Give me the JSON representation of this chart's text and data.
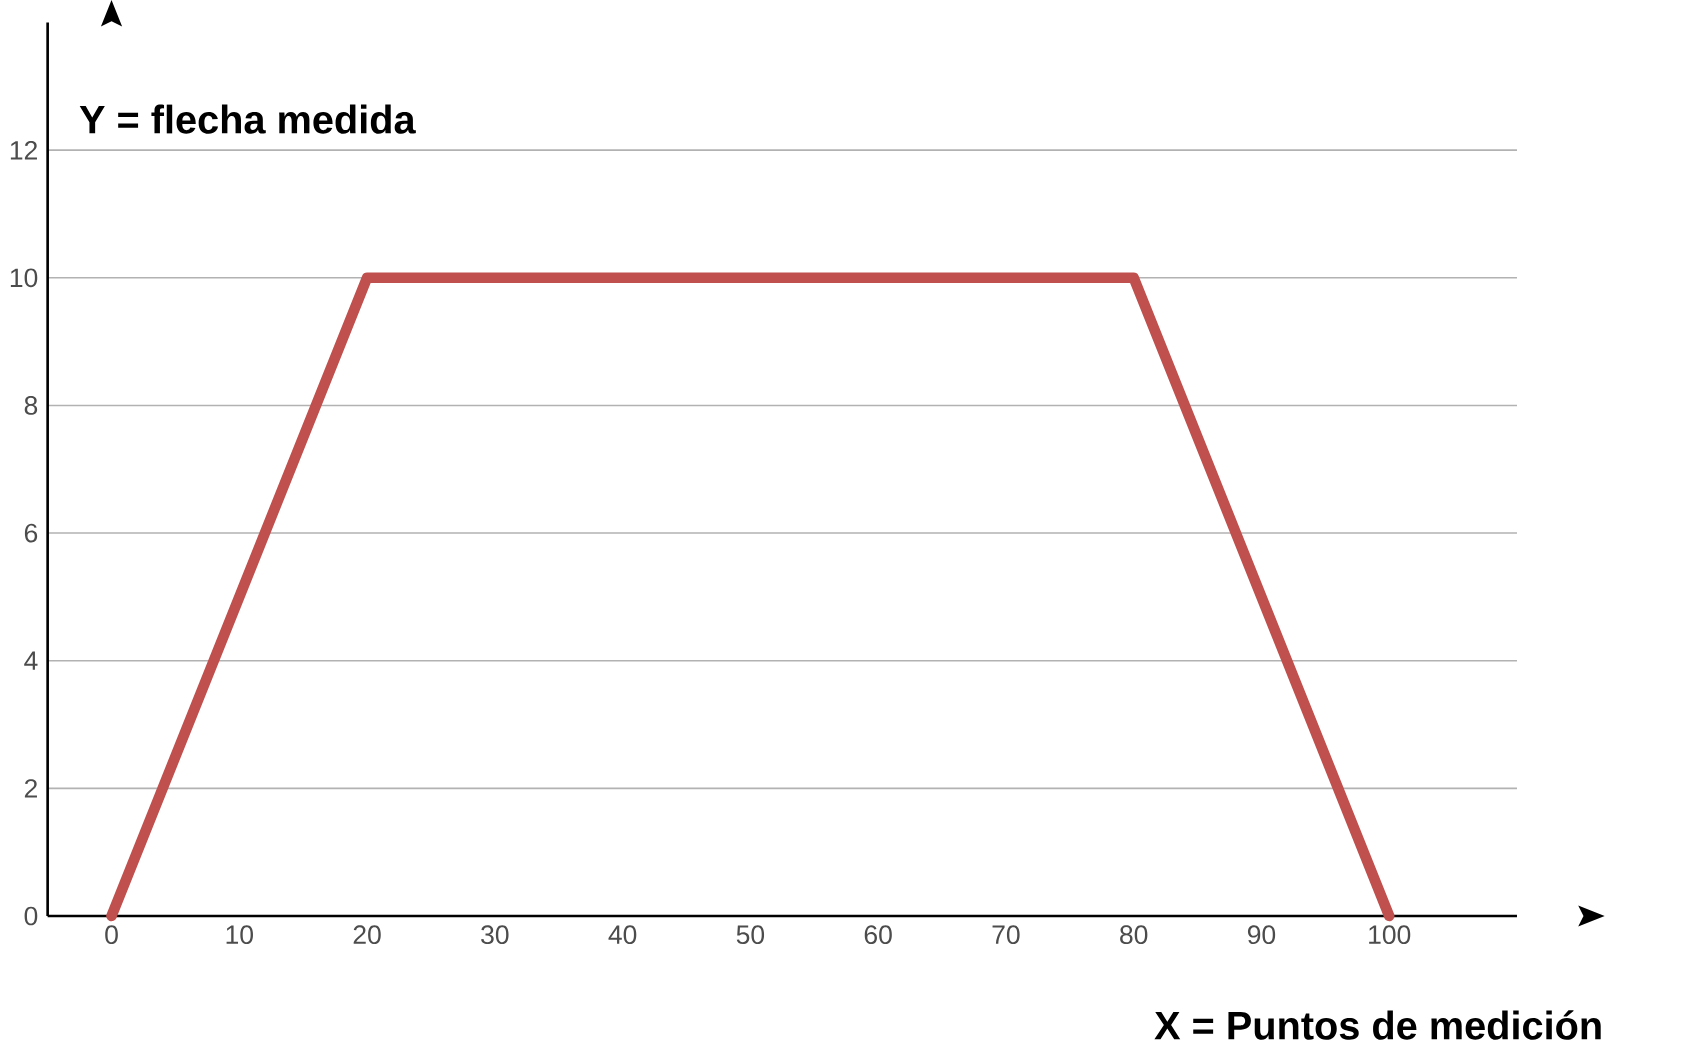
{
  "chart_data": {
    "type": "line",
    "xlabel": "X = Puntos de medición",
    "ylabel": "Y = flecha medida",
    "x": [
      0,
      20,
      80,
      100
    ],
    "series": [
      {
        "color": "#c0504d",
        "values": [
          0,
          10,
          10,
          0
        ]
      }
    ],
    "xlim": [
      -5,
      110
    ],
    "ylim": [
      0,
      14
    ],
    "xticks": [
      0,
      10,
      20,
      30,
      40,
      50,
      60,
      70,
      80,
      90,
      100
    ],
    "yticks": [
      0,
      2,
      4,
      6,
      8,
      10,
      12
    ],
    "grid": "y"
  }
}
